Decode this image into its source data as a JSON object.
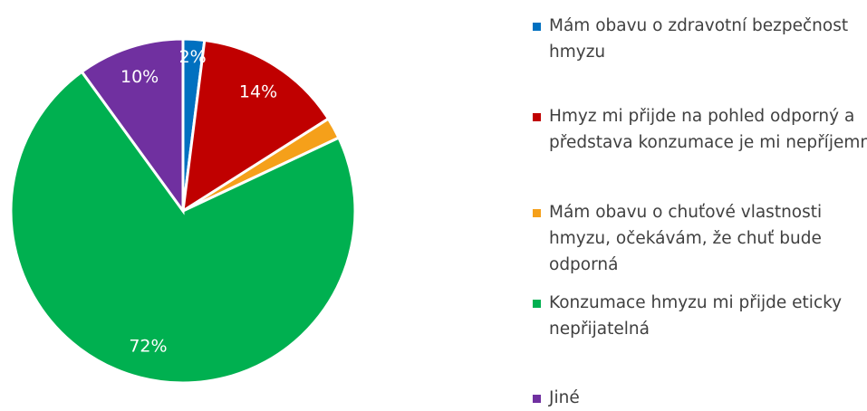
{
  "chart_data": {
    "type": "pie",
    "categories": [
      "Mám obavu o zdravotní bezpečnost hmyzu",
      "Hmyz mi přijde na pohled odporný a představa konzumace je mi nepříjemná",
      "Mám obavu o chuťové vlastnosti hmyzu, očekávám, že chuť bude odporná",
      "Konzumace hmyzu mi přijde eticky nepřijatelná",
      "Jiné"
    ],
    "values": [
      2,
      14,
      2,
      72,
      10
    ],
    "value_labels": [
      "2%",
      "14%",
      null,
      "72%",
      "10%"
    ],
    "colors": [
      "#0070c0",
      "#c00000",
      "#f5a01a",
      "#00b050",
      "#7030a0"
    ],
    "legend": "right"
  }
}
